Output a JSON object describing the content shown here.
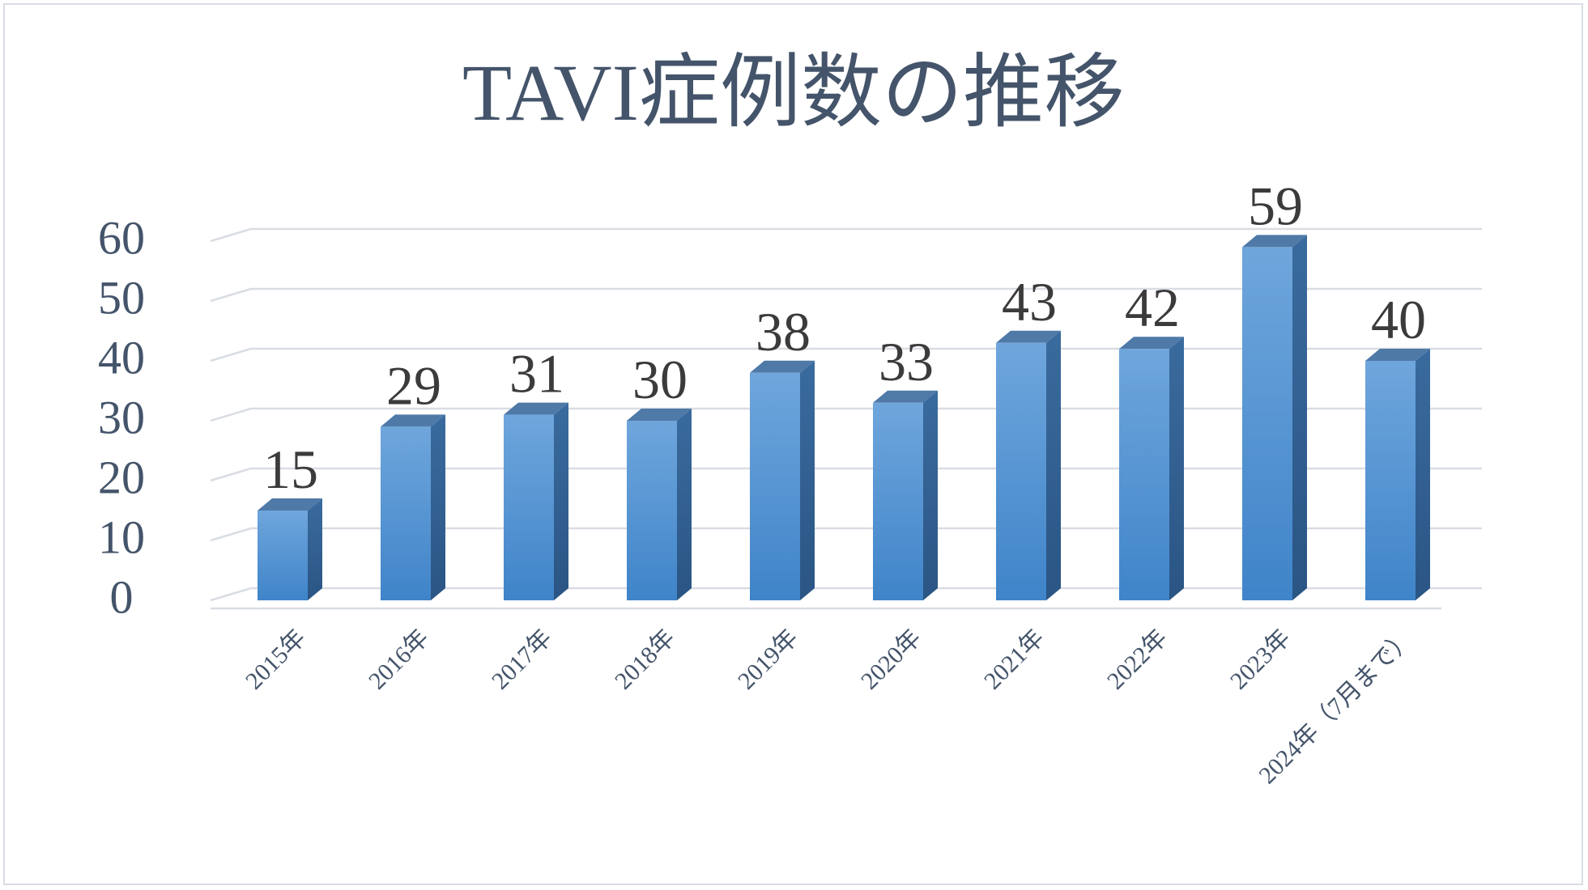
{
  "chart_data": {
    "type": "bar",
    "title": "TAVI症例数の推移",
    "categories": [
      "2015年",
      "2016年",
      "2017年",
      "2018年",
      "2019年",
      "2020年",
      "2021年",
      "2022年",
      "2023年",
      "2024年（7月まで）"
    ],
    "series": [
      {
        "values": [
          15,
          29,
          31,
          30,
          38,
          33,
          43,
          42,
          59,
          40
        ]
      }
    ],
    "y_ticks": [
      "0",
      "10",
      "20",
      "30",
      "40",
      "50",
      "60"
    ],
    "ylim": [
      0,
      60
    ],
    "grid": true,
    "data_labels": true,
    "style": "3d-column",
    "colors": {
      "bar_front_top": "#6fa6dc",
      "bar_front_bottom": "#3f84c9",
      "bar_side": "#2f5f91",
      "bar_top": "#4f79a7",
      "grid": "#d9dde3",
      "title": "#44546a",
      "axis_text": "#44546a",
      "label_text": "#3b3b3b"
    }
  }
}
